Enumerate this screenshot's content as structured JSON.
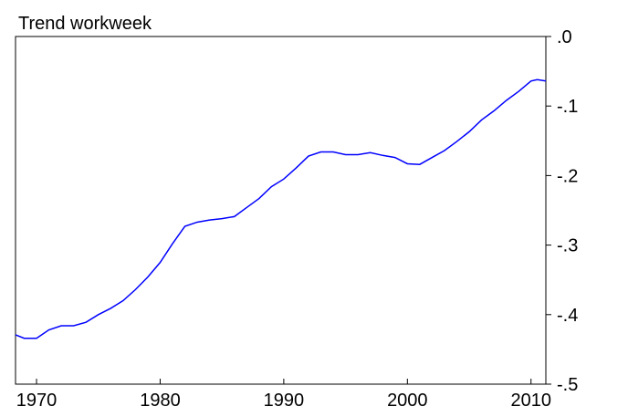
{
  "chart_data": {
    "type": "line",
    "title": "Trend workweek",
    "x": [
      1968.3,
      1969,
      1970,
      1971,
      1972,
      1973,
      1974,
      1975,
      1976,
      1977,
      1978,
      1979,
      1980,
      1981,
      1982,
      1983,
      1984,
      1985,
      1986,
      1987,
      1988,
      1989,
      1990,
      1991,
      1992,
      1993,
      1994,
      1995,
      1996,
      1997,
      1998,
      1999,
      2000,
      2001,
      2002,
      2003,
      2004,
      2005,
      2006,
      2007,
      2008,
      2009,
      2010,
      2010.5,
      2011.2
    ],
    "series": [
      {
        "color": "#0000ff",
        "values": [
          -0.429,
          -0.434,
          -0.434,
          -0.422,
          -0.416,
          -0.416,
          -0.411,
          -0.4,
          -0.391,
          -0.38,
          -0.364,
          -0.346,
          -0.325,
          -0.298,
          -0.273,
          -0.267,
          -0.264,
          -0.262,
          -0.259,
          -0.246,
          -0.233,
          -0.216,
          -0.205,
          -0.189,
          -0.172,
          -0.166,
          -0.166,
          -0.17,
          -0.17,
          -0.167,
          -0.171,
          -0.174,
          -0.183,
          -0.184,
          -0.174,
          -0.164,
          -0.151,
          -0.137,
          -0.12,
          -0.107,
          -0.092,
          -0.079,
          -0.064,
          -0.062,
          -0.064
        ]
      }
    ],
    "xlim": [
      1968.3,
      2011.2
    ],
    "xticks": [
      1970,
      1980,
      1990,
      2000,
      2010
    ],
    "ylim": [
      -0.5,
      0.0
    ],
    "yticks": [
      {
        "value": 0.0,
        "label": ".0"
      },
      {
        "value": -0.1,
        "label": "-.1"
      },
      {
        "value": -0.2,
        "label": "-.2"
      },
      {
        "value": -0.3,
        "label": "-.3"
      },
      {
        "value": -0.4,
        "label": "-.4"
      },
      {
        "value": -0.5,
        "label": "-.5"
      }
    ],
    "y_axis_side": "right"
  }
}
